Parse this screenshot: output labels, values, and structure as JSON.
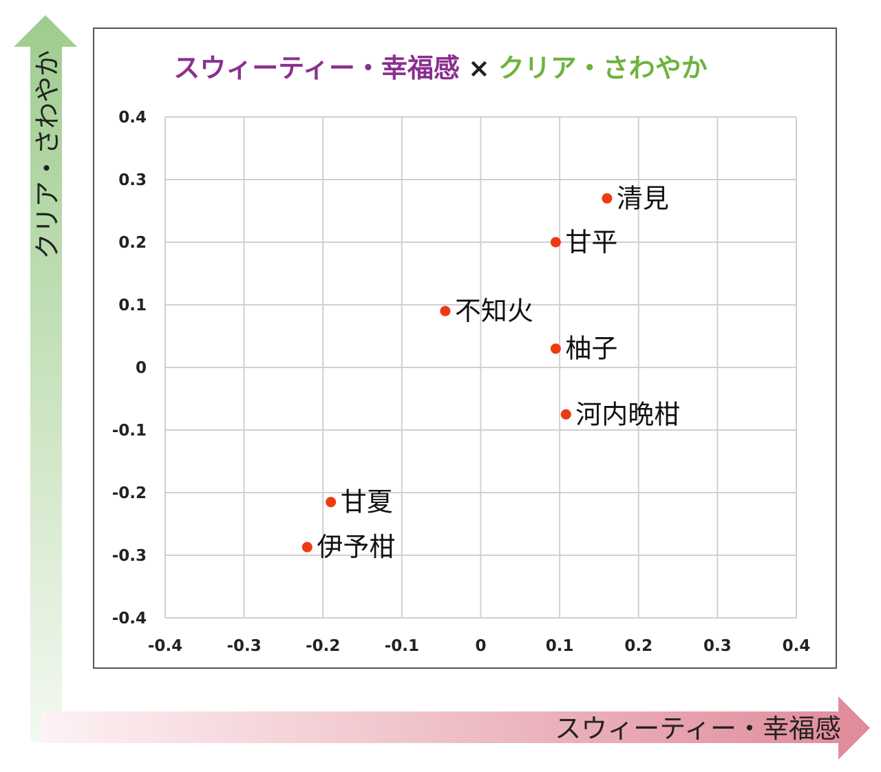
{
  "title": {
    "part1": "スウィーティー・幸福感",
    "separator": "×",
    "part2": "クリア・さわやか",
    "part1_color": "#8b2f8f",
    "part2_color": "#6db33f"
  },
  "colors": {
    "point": "#ee3a12",
    "grid": "#d0d0d0",
    "frame": "#555555",
    "x_arrow": "#e08a99",
    "y_arrow": "#9fcc8e"
  },
  "chart_data": {
    "type": "scatter",
    "title": "スウィーティー・幸福感 × クリア・さわやか",
    "xlabel": "スウィーティー・幸福感",
    "ylabel": "クリア・さわやか",
    "xlim": [
      -0.4,
      0.4
    ],
    "ylim": [
      -0.4,
      0.4
    ],
    "xticks": [
      "-0.4",
      "-0.3",
      "-0.2",
      "-0.1",
      "0",
      "0.1",
      "0.2",
      "0.3",
      "0.4"
    ],
    "yticks": [
      "0.4",
      "0.3",
      "0.2",
      "0.1",
      "0",
      "-0.1",
      "-0.2",
      "-0.3",
      "-0.4"
    ],
    "grid": true,
    "points": [
      {
        "label": "清見",
        "x": 0.16,
        "y": 0.27
      },
      {
        "label": "甘平",
        "x": 0.095,
        "y": 0.2
      },
      {
        "label": "不知火",
        "x": -0.045,
        "y": 0.09
      },
      {
        "label": "柚子",
        "x": 0.095,
        "y": 0.03
      },
      {
        "label": "河内晩柑",
        "x": 0.108,
        "y": -0.075
      },
      {
        "label": "甘夏",
        "x": -0.19,
        "y": -0.215
      },
      {
        "label": "伊予柑",
        "x": -0.22,
        "y": -0.287
      }
    ]
  }
}
